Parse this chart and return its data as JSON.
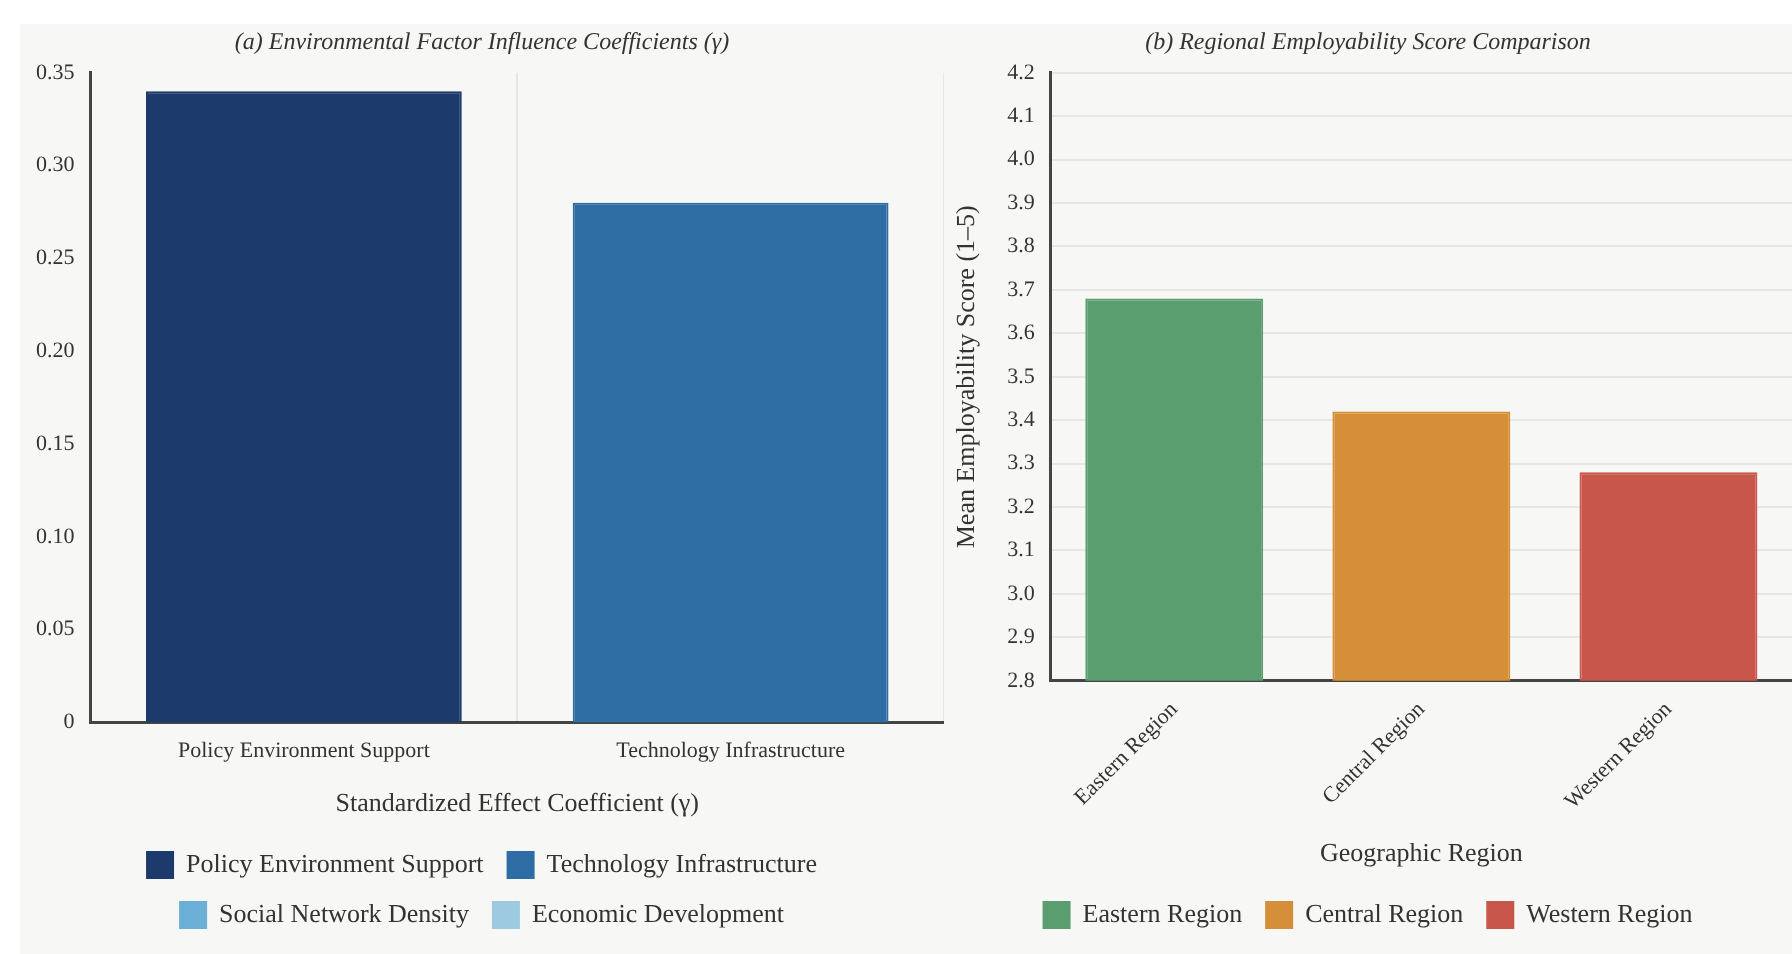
{
  "chart_data": [
    {
      "type": "bar",
      "title": "(a) Environmental Factor Influence Coefficients (γ)",
      "xlabel": "Standardized Effect Coefficient (γ)",
      "categories": [
        "Policy Environment Support",
        "Technology Infrastructure"
      ],
      "series": [
        {
          "name": "Policy Environment Support",
          "color": "#1c3a6b",
          "values": [
            0.34,
            null
          ]
        },
        {
          "name": "Technology Infrastructure",
          "color": "#2e6ca4",
          "values": [
            null,
            0.28
          ]
        },
        {
          "name": "Social Network Density",
          "color": "#6baed6",
          "values": [
            null,
            null
          ]
        },
        {
          "name": "Economic Development",
          "color": "#9ecae1",
          "values": [
            null,
            null
          ]
        }
      ],
      "ylim": [
        0,
        0.35
      ],
      "yticks": [
        {
          "value": 0,
          "label": "0"
        },
        0.05,
        {
          "value": 0.1,
          "label": "0.10"
        },
        0.15,
        {
          "value": 0.2,
          "label": "0.20"
        },
        0.25,
        {
          "value": 0.3,
          "label": "0.30"
        },
        0.35
      ],
      "grid": "x",
      "legend": "bottom"
    },
    {
      "type": "bar",
      "title": "(b) Regional Employability Score Comparison",
      "xlabel": "Geographic Region",
      "ylabel": "Mean Employability Score (1–5)",
      "categories": [
        "Eastern Region",
        "Central Region",
        "Western Region"
      ],
      "series": [
        {
          "name": "Eastern Region",
          "color": "#5a9e6f",
          "values": [
            3.68,
            null,
            null
          ]
        },
        {
          "name": "Central Region",
          "color": "#d48f38",
          "values": [
            null,
            3.42,
            null
          ]
        },
        {
          "name": "Western Region",
          "color": "#c8564a",
          "values": [
            null,
            null,
            3.28
          ]
        }
      ],
      "ylim": [
        2.8,
        4.2
      ],
      "yticks": [
        2.8,
        2.9,
        {
          "value": 3,
          "label": "3.0"
        },
        3.1,
        3.2,
        3.3,
        3.4,
        3.5,
        3.6,
        3.7,
        3.8,
        3.9,
        {
          "value": 4,
          "label": "4.0"
        },
        4.1,
        4.2
      ],
      "grid": "y",
      "legend": "bottom"
    }
  ]
}
